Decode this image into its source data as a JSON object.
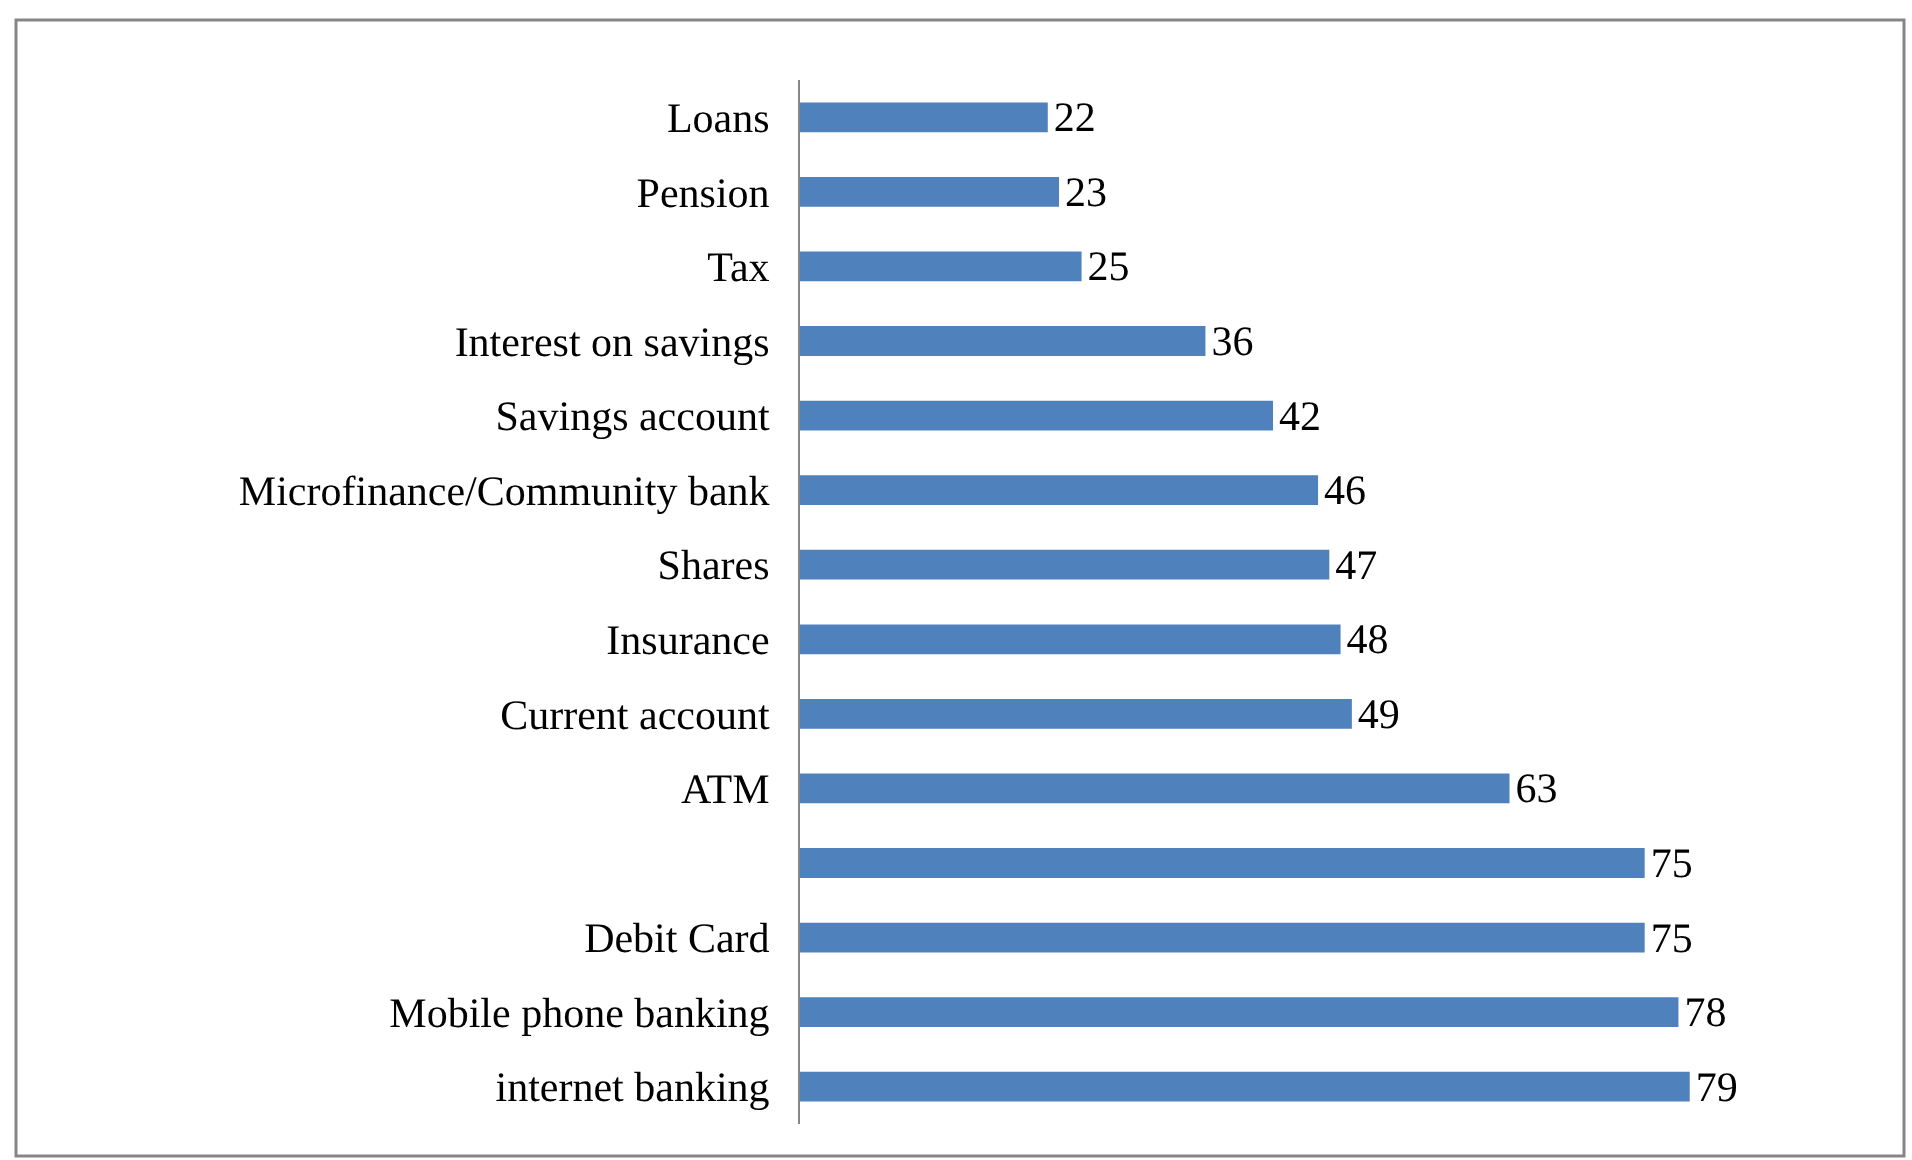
{
  "chart_data": {
    "type": "bar",
    "orientation": "horizontal",
    "categories": [
      "Loans",
      "Pension",
      "Tax",
      "Interest on savings",
      "Savings account",
      "Microfinance/Community bank",
      "Shares",
      "Insurance",
      "Current account",
      "ATM",
      null,
      "Debit Card",
      "Mobile phone banking",
      "internet banking"
    ],
    "values": [
      22,
      23,
      25,
      36,
      42,
      46,
      47,
      48,
      49,
      63,
      75,
      75,
      78,
      79
    ],
    "color": "#4f81bd",
    "data_labels": true,
    "tick_labels": "y"
  }
}
